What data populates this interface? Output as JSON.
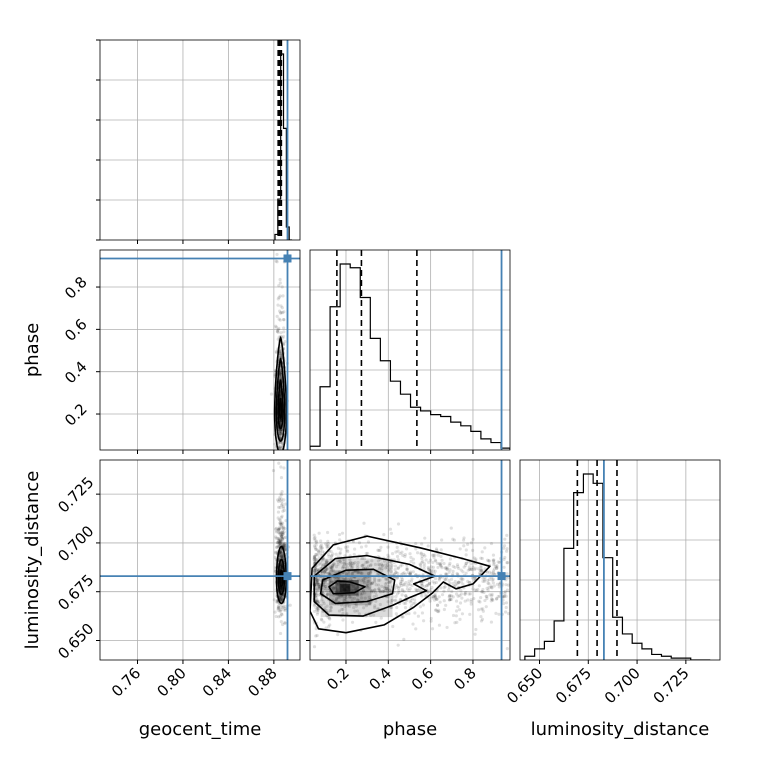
{
  "chart_data": {
    "type": "corner",
    "parameters": [
      "geocent_time",
      "phase",
      "luminosity_distance"
    ],
    "truth": {
      "geocent_time": 0.892,
      "phase": 0.935,
      "luminosity_distance": 0.683
    },
    "truth_color": "#4682b4",
    "grid": true,
    "axes": {
      "geocent_time": {
        "range": [
          0.727,
          0.903
        ],
        "ticks": [
          0.76,
          0.8,
          0.84,
          0.88
        ],
        "tick_labels": [
          "0.76",
          "0.80",
          "0.84",
          "0.88"
        ],
        "xlabel": "geocent_time"
      },
      "phase": {
        "range": [
          0.03,
          0.975
        ],
        "ticks": [
          0.2,
          0.4,
          0.6,
          0.8
        ],
        "tick_labels": [
          "0.2",
          "0.4",
          "0.6",
          "0.8"
        ],
        "xlabel": "phase",
        "ylabel": "phase"
      },
      "luminosity_distance": {
        "range": [
          0.64,
          0.7425
        ],
        "ticks": [
          0.65,
          0.675,
          0.7,
          0.725
        ],
        "tick_labels": [
          "0.650",
          "0.675",
          "0.700",
          "0.725"
        ],
        "xlabel": "luminosity_distance",
        "ylabel": "luminosity_distance"
      }
    },
    "histograms": [
      {
        "param": "geocent_time",
        "bin_edges": [
          0.881,
          0.8835,
          0.886,
          0.8885,
          0.891,
          0.8935,
          0.896
        ],
        "counts": [
          0.03,
          0.22,
          1.0,
          0.6,
          0.07,
          0.0
        ],
        "quantiles": [
          0.8838,
          0.8852,
          0.8866
        ]
      },
      {
        "param": "phase",
        "bin_edges": [
          0.03,
          0.0775,
          0.125,
          0.1725,
          0.22,
          0.2675,
          0.315,
          0.3625,
          0.41,
          0.4575,
          0.505,
          0.5525,
          0.6,
          0.6475,
          0.695,
          0.7425,
          0.79,
          0.8375,
          0.885,
          0.9325,
          0.975
        ],
        "counts": [
          0.02,
          0.34,
          0.77,
          1.0,
          0.98,
          0.82,
          0.6,
          0.48,
          0.37,
          0.3,
          0.23,
          0.21,
          0.19,
          0.18,
          0.15,
          0.13,
          0.1,
          0.06,
          0.04,
          0.01
        ],
        "quantiles": [
          0.157,
          0.273,
          0.535
        ]
      },
      {
        "param": "luminosity_distance",
        "bin_edges": [
          0.6425,
          0.6475,
          0.6525,
          0.6575,
          0.6625,
          0.6675,
          0.6725,
          0.6775,
          0.6825,
          0.6875,
          0.6925,
          0.6975,
          0.7025,
          0.7075,
          0.7125,
          0.7175,
          0.7225,
          0.7275,
          0.7325,
          0.7375
        ],
        "counts": [
          0.02,
          0.06,
          0.1,
          0.21,
          0.6,
          0.9,
          1.0,
          0.95,
          0.55,
          0.23,
          0.14,
          0.09,
          0.06,
          0.03,
          0.02,
          0.01,
          0.01,
          0.0,
          0.0
        ],
        "quantiles": [
          0.6694,
          0.6795,
          0.6897
        ]
      }
    ],
    "contours_2d": [
      {
        "x": "geocent_time",
        "y": "phase",
        "center": [
          0.8859,
          0.215
        ],
        "spread": [
          0.0022,
          0.12
        ],
        "levels": [
          {
            "scale": 0.4,
            "sharpness": 2
          },
          {
            "scale": 1.0,
            "sharpness": 3
          },
          {
            "scale": 1.7,
            "sharpness": 4
          },
          {
            "scale": 2.4,
            "sharpness": 5
          }
        ]
      },
      {
        "x": "geocent_time",
        "y": "luminosity_distance",
        "center": [
          0.8866,
          0.681
        ],
        "spread": [
          0.0024,
          0.0095
        ],
        "levels": [
          {
            "scale": 0.5,
            "sharpness": 2
          },
          {
            "scale": 1.1,
            "sharpness": 2.5
          },
          {
            "scale": 1.8,
            "sharpness": 3
          }
        ]
      },
      {
        "x": "phase",
        "y": "luminosity_distance",
        "contours": [
          [
            [
              0.22,
              0.68
            ],
            [
              0.29,
              0.6775
            ],
            [
              0.24,
              0.6745
            ],
            [
              0.14,
              0.674
            ],
            [
              0.12,
              0.6775
            ],
            [
              0.16,
              0.6805
            ]
          ],
          [
            [
              0.33,
              0.6865
            ],
            [
              0.43,
              0.681
            ],
            [
              0.42,
              0.674
            ],
            [
              0.3,
              0.67
            ],
            [
              0.15,
              0.669
            ],
            [
              0.08,
              0.674
            ],
            [
              0.09,
              0.681
            ],
            [
              0.2,
              0.686
            ]
          ],
          [
            [
              0.3,
              0.6935
            ],
            [
              0.5,
              0.689
            ],
            [
              0.62,
              0.683
            ],
            [
              0.52,
              0.679
            ],
            [
              0.58,
              0.6755
            ],
            [
              0.5,
              0.672
            ],
            [
              0.42,
              0.668
            ],
            [
              0.28,
              0.6625
            ],
            [
              0.12,
              0.663
            ],
            [
              0.05,
              0.67
            ],
            [
              0.05,
              0.683
            ],
            [
              0.15,
              0.692
            ]
          ],
          [
            [
              0.3,
              0.7035
            ],
            [
              0.55,
              0.6975
            ],
            [
              0.75,
              0.692
            ],
            [
              0.88,
              0.688
            ],
            [
              0.8,
              0.679
            ],
            [
              0.72,
              0.6765
            ],
            [
              0.66,
              0.68
            ],
            [
              0.61,
              0.6745
            ],
            [
              0.52,
              0.667
            ],
            [
              0.38,
              0.658
            ],
            [
              0.2,
              0.654
            ],
            [
              0.07,
              0.656
            ],
            [
              0.03,
              0.665
            ],
            [
              0.04,
              0.687
            ],
            [
              0.14,
              0.699
            ]
          ]
        ]
      }
    ]
  }
}
